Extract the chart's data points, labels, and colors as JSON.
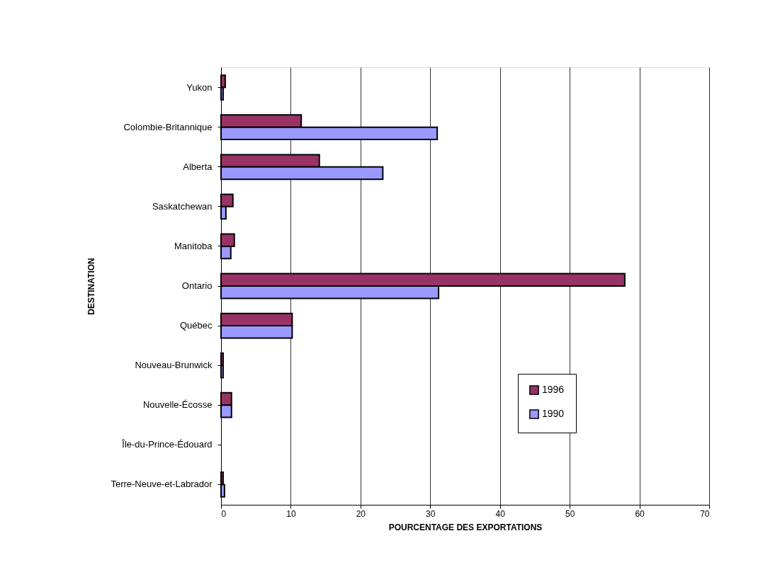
{
  "chart_data": {
    "type": "bar",
    "orientation": "horizontal",
    "xlabel": "POURCENTAGE DES EXPORTATIONS",
    "ylabel": "DESTINATION",
    "categories": [
      "Yukon",
      "Colombie-Britannique",
      "Alberta",
      "Saskatchewan",
      "Manitoba",
      "Ontario",
      "Québec",
      "Nouveau-Brunwick",
      "Nouvelle-Écosse",
      "Île-du-Prince-Édouard",
      "Terre-Neuve-et-Labrador"
    ],
    "series": [
      {
        "name": "1996",
        "color": "#993366",
        "values": [
          0.6,
          11.5,
          14.1,
          1.7,
          1.9,
          57.9,
          10.2,
          0.3,
          1.5,
          0,
          0.3
        ]
      },
      {
        "name": "1990",
        "color": "#9999ff",
        "values": [
          0.3,
          31.0,
          23.2,
          0.7,
          1.4,
          31.2,
          10.2,
          0.3,
          1.5,
          0,
          0.5
        ]
      }
    ],
    "xlim": [
      0,
      70
    ],
    "xticks": [
      0,
      10,
      20,
      30,
      40,
      50,
      60,
      70
    ],
    "grid": "x",
    "legend": "right"
  }
}
